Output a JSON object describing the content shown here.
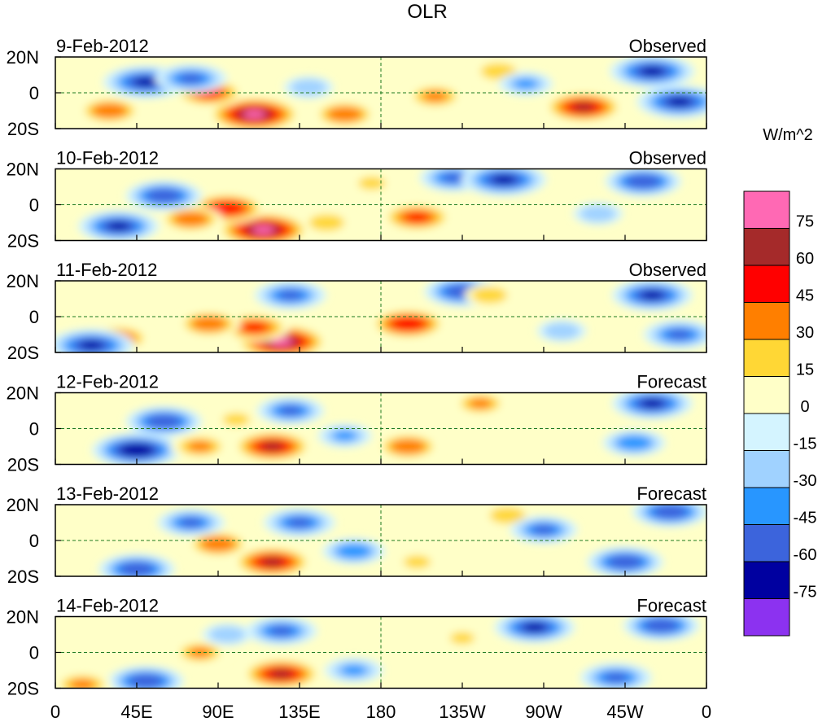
{
  "chart_data": {
    "type": "heatmap",
    "title": "OLR",
    "units": "W/m^2",
    "panels": [
      {
        "date": "9-Feb-2012",
        "kind": "Observed"
      },
      {
        "date": "10-Feb-2012",
        "kind": "Observed"
      },
      {
        "date": "11-Feb-2012",
        "kind": "Observed"
      },
      {
        "date": "12-Feb-2012",
        "kind": "Forecast"
      },
      {
        "date": "13-Feb-2012",
        "kind": "Forecast"
      },
      {
        "date": "14-Feb-2012",
        "kind": "Forecast"
      }
    ],
    "x_ticks": [
      "0",
      "45E",
      "90E",
      "135E",
      "180",
      "135W",
      "90W",
      "45W",
      "0"
    ],
    "y_ticks": [
      "20N",
      "0",
      "20S"
    ],
    "xlim_deg": [
      0,
      360
    ],
    "ylim_deg": [
      -20,
      20
    ],
    "levels": [
      -75,
      -60,
      -45,
      -30,
      -15,
      0,
      15,
      30,
      45,
      60,
      75
    ],
    "level_labels": [
      "75",
      "60",
      "45",
      "30",
      "15",
      "0",
      "-15",
      "-30",
      "-45",
      "-60",
      "-75"
    ],
    "colors": [
      "#ff69b4",
      "#a52a2a",
      "#ff0000",
      "#ff7f00",
      "#ffd735",
      "#ffffc8",
      "#d4f4ff",
      "#a0d2ff",
      "#2896ff",
      "#3c64dc",
      "#0000a0",
      "#8c32f0"
    ],
    "anomalies": [
      [
        {
          "lon": 110,
          "lat": -12,
          "v": 80
        },
        {
          "lon": 85,
          "lat": 0,
          "v": 55
        },
        {
          "lon": 160,
          "lat": -12,
          "v": 45
        },
        {
          "lon": 210,
          "lat": -2,
          "v": 40
        },
        {
          "lon": 292,
          "lat": -8,
          "v": 65
        },
        {
          "lon": 30,
          "lat": -10,
          "v": 45
        },
        {
          "lon": 50,
          "lat": 6,
          "v": -70
        },
        {
          "lon": 75,
          "lat": 8,
          "v": -55
        },
        {
          "lon": 140,
          "lat": 3,
          "v": -30
        },
        {
          "lon": 245,
          "lat": 12,
          "v": 30
        },
        {
          "lon": 330,
          "lat": 12,
          "v": -70
        },
        {
          "lon": 345,
          "lat": -5,
          "v": -70
        },
        {
          "lon": 260,
          "lat": 5,
          "v": -35
        }
      ],
      [
        {
          "lon": 115,
          "lat": -14,
          "v": 80
        },
        {
          "lon": 95,
          "lat": -2,
          "v": 60
        },
        {
          "lon": 75,
          "lat": -8,
          "v": 45
        },
        {
          "lon": 200,
          "lat": -7,
          "v": 55
        },
        {
          "lon": 150,
          "lat": -10,
          "v": 30
        },
        {
          "lon": 60,
          "lat": 5,
          "v": -60
        },
        {
          "lon": 35,
          "lat": -12,
          "v": -65
        },
        {
          "lon": 220,
          "lat": 15,
          "v": -50
        },
        {
          "lon": 248,
          "lat": 14,
          "v": -70
        },
        {
          "lon": 325,
          "lat": 13,
          "v": -60
        },
        {
          "lon": 300,
          "lat": -5,
          "v": -30
        },
        {
          "lon": 175,
          "lat": 12,
          "v": 25
        }
      ],
      [
        {
          "lon": 125,
          "lat": -14,
          "v": 80
        },
        {
          "lon": 110,
          "lat": -6,
          "v": 55
        },
        {
          "lon": 195,
          "lat": -4,
          "v": 60
        },
        {
          "lon": 85,
          "lat": -4,
          "v": 45
        },
        {
          "lon": 35,
          "lat": -12,
          "v": 45
        },
        {
          "lon": 130,
          "lat": 12,
          "v": -55
        },
        {
          "lon": 225,
          "lat": 14,
          "v": -60
        },
        {
          "lon": 330,
          "lat": 12,
          "v": -65
        },
        {
          "lon": 345,
          "lat": -10,
          "v": -55
        },
        {
          "lon": 20,
          "lat": -16,
          "v": -70
        },
        {
          "lon": 240,
          "lat": 12,
          "v": 30
        },
        {
          "lon": 280,
          "lat": -8,
          "v": -30
        }
      ],
      [
        {
          "lon": 120,
          "lat": -10,
          "v": 65
        },
        {
          "lon": 45,
          "lat": -12,
          "v": -75
        },
        {
          "lon": 80,
          "lat": -10,
          "v": 40
        },
        {
          "lon": 195,
          "lat": -10,
          "v": 45
        },
        {
          "lon": 235,
          "lat": 14,
          "v": 35
        },
        {
          "lon": 60,
          "lat": 4,
          "v": -60
        },
        {
          "lon": 130,
          "lat": 10,
          "v": -50
        },
        {
          "lon": 330,
          "lat": 14,
          "v": -65
        },
        {
          "lon": 320,
          "lat": -8,
          "v": -45
        },
        {
          "lon": 160,
          "lat": -4,
          "v": -35
        },
        {
          "lon": 100,
          "lat": 5,
          "v": 25
        }
      ],
      [
        {
          "lon": 120,
          "lat": -12,
          "v": 65
        },
        {
          "lon": 90,
          "lat": -2,
          "v": 45
        },
        {
          "lon": 45,
          "lat": -16,
          "v": -60
        },
        {
          "lon": 75,
          "lat": 10,
          "v": -50
        },
        {
          "lon": 135,
          "lat": 10,
          "v": -55
        },
        {
          "lon": 250,
          "lat": 14,
          "v": 30
        },
        {
          "lon": 340,
          "lat": 16,
          "v": -60
        },
        {
          "lon": 315,
          "lat": -12,
          "v": -60
        },
        {
          "lon": 270,
          "lat": 6,
          "v": -50
        },
        {
          "lon": 165,
          "lat": -6,
          "v": -45
        },
        {
          "lon": 200,
          "lat": -12,
          "v": 25
        }
      ],
      [
        {
          "lon": 125,
          "lat": -12,
          "v": 65
        },
        {
          "lon": 50,
          "lat": -16,
          "v": -60
        },
        {
          "lon": 80,
          "lat": 0,
          "v": 35
        },
        {
          "lon": 125,
          "lat": 12,
          "v": -55
        },
        {
          "lon": 265,
          "lat": 14,
          "v": -65
        },
        {
          "lon": 335,
          "lat": 15,
          "v": -60
        },
        {
          "lon": 310,
          "lat": -14,
          "v": -55
        },
        {
          "lon": 165,
          "lat": -10,
          "v": -40
        },
        {
          "lon": 225,
          "lat": 8,
          "v": 20
        },
        {
          "lon": 15,
          "lat": -18,
          "v": 40
        },
        {
          "lon": 95,
          "lat": 10,
          "v": -30
        }
      ]
    ]
  }
}
